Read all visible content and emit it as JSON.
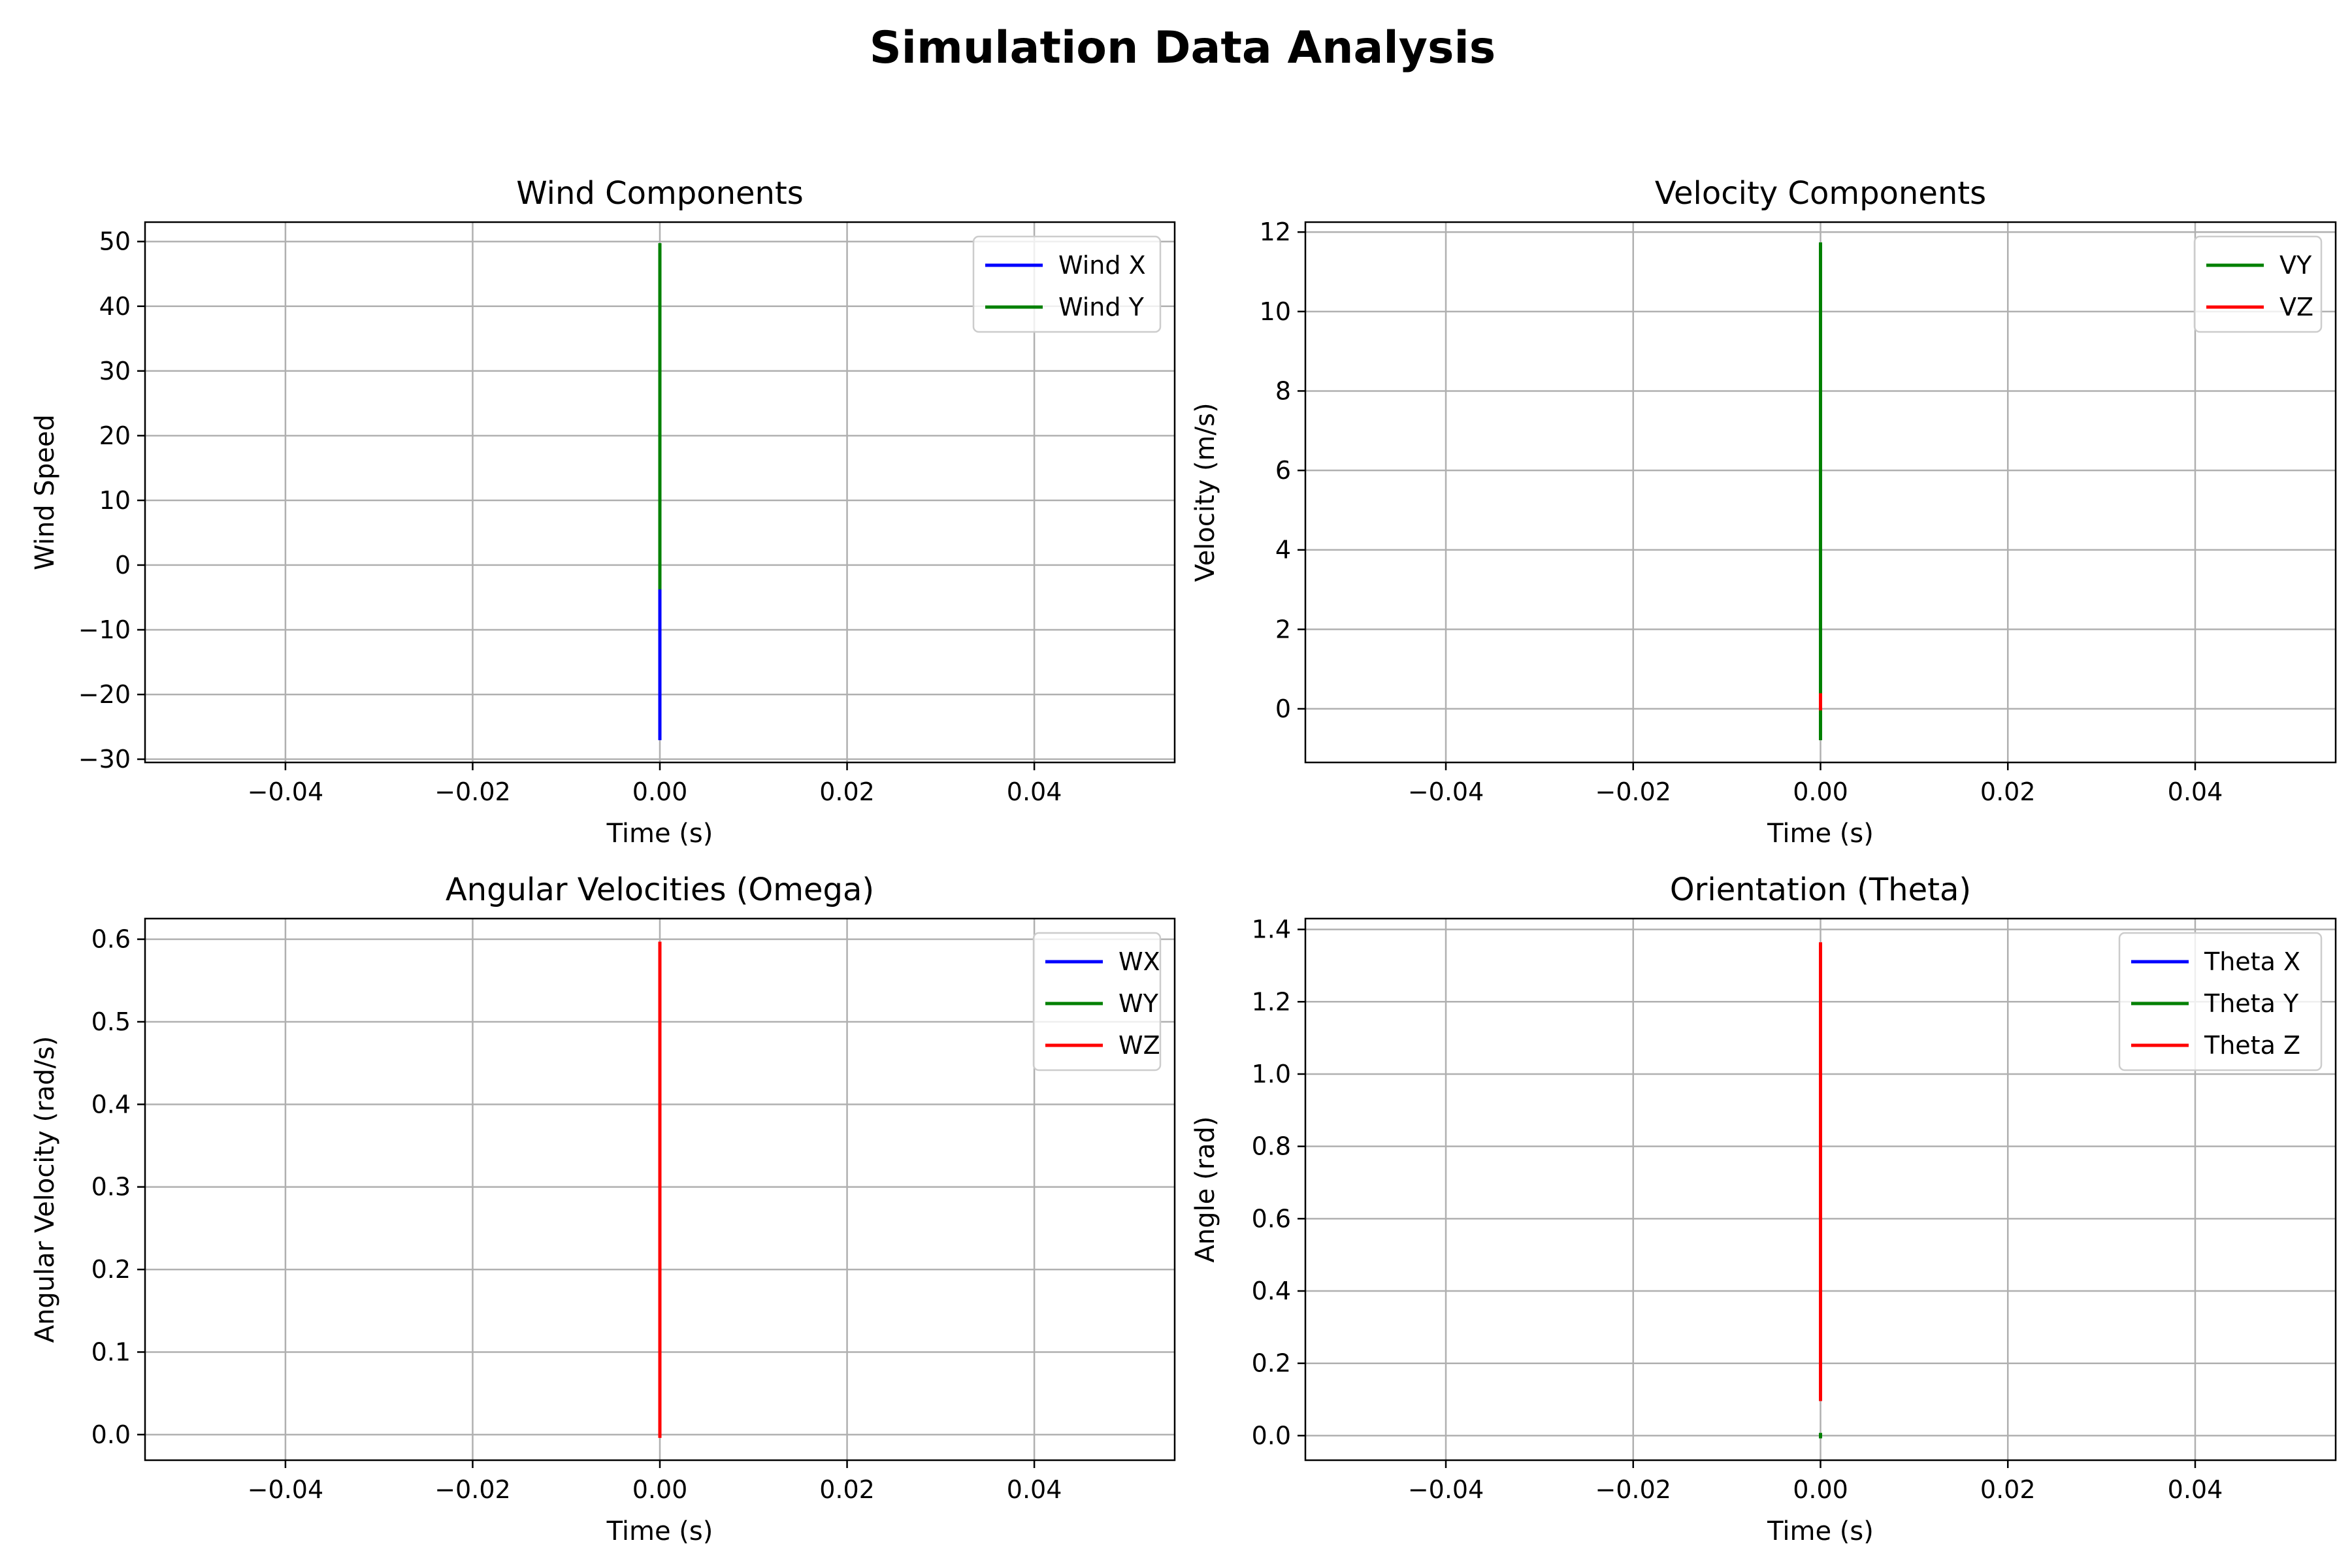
{
  "figure": {
    "title": "Simulation Data Analysis"
  },
  "chart_data": [
    {
      "type": "line",
      "title": "Wind Components",
      "xlabel": "Time (s)",
      "ylabel": "Wind Speed",
      "xlim": [
        -0.055,
        0.055
      ],
      "ylim": [
        -30.5,
        53
      ],
      "xticks": [
        -0.04,
        -0.02,
        0.0,
        0.02,
        0.04
      ],
      "xtick_labels": [
        "−0.04",
        "−0.02",
        "0.00",
        "0.02",
        "0.04"
      ],
      "yticks": [
        -30,
        -20,
        -10,
        0,
        10,
        20,
        30,
        40,
        50
      ],
      "ytick_labels": [
        "−30",
        "−20",
        "−10",
        "0",
        "10",
        "20",
        "30",
        "40",
        "50"
      ],
      "grid": true,
      "legend": "upper right",
      "series": [
        {
          "name": "Wind X",
          "color": "#0000ff",
          "x": [
            0,
            0
          ],
          "y": [
            -26.8,
            -3.5
          ]
        },
        {
          "name": "Wind Y",
          "color": "#008000",
          "x": [
            0,
            0
          ],
          "y": [
            -3.5,
            49.5
          ]
        }
      ]
    },
    {
      "type": "line",
      "title": "Velocity Components",
      "xlabel": "Time (s)",
      "ylabel": "Velocity (m/s)",
      "xlim": [
        -0.055,
        0.055
      ],
      "ylim": [
        -1.35,
        12.25
      ],
      "xticks": [
        -0.04,
        -0.02,
        0.0,
        0.02,
        0.04
      ],
      "xtick_labels": [
        "−0.04",
        "−0.02",
        "0.00",
        "0.02",
        "0.04"
      ],
      "yticks": [
        0,
        2,
        4,
        6,
        8,
        10,
        12
      ],
      "ytick_labels": [
        "0",
        "2",
        "4",
        "6",
        "8",
        "10",
        "12"
      ],
      "grid": true,
      "legend": "upper right",
      "series": [
        {
          "name": "VY",
          "color": "#008000",
          "x": [
            0,
            0
          ],
          "y": [
            -0.75,
            11.7
          ]
        },
        {
          "name": "VZ",
          "color": "#ff0000",
          "x": [
            0,
            0
          ],
          "y": [
            0.0,
            0.35
          ]
        }
      ]
    },
    {
      "type": "line",
      "title": "Angular Velocities (Omega)",
      "xlabel": "Time (s)",
      "ylabel": "Angular Velocity (rad/s)",
      "xlim": [
        -0.055,
        0.055
      ],
      "ylim": [
        -0.031,
        0.625
      ],
      "xticks": [
        -0.04,
        -0.02,
        0.0,
        0.02,
        0.04
      ],
      "xtick_labels": [
        "−0.04",
        "−0.02",
        "0.00",
        "0.02",
        "0.04"
      ],
      "yticks": [
        0.0,
        0.1,
        0.2,
        0.3,
        0.4,
        0.5,
        0.6
      ],
      "ytick_labels": [
        "0.0",
        "0.1",
        "0.2",
        "0.3",
        "0.4",
        "0.5",
        "0.6"
      ],
      "grid": true,
      "legend": "upper right",
      "series": [
        {
          "name": "WX",
          "color": "#0000ff",
          "x": [
            0,
            0
          ],
          "y": [
            0.0,
            0.0
          ]
        },
        {
          "name": "WY",
          "color": "#008000",
          "x": [
            0,
            0
          ],
          "y": [
            0.0,
            0.0
          ]
        },
        {
          "name": "WZ",
          "color": "#ff0000",
          "x": [
            0,
            0
          ],
          "y": [
            -0.002,
            0.595
          ]
        }
      ]
    },
    {
      "type": "line",
      "title": "Orientation (Theta)",
      "xlabel": "Time (s)",
      "ylabel": "Angle (rad)",
      "xlim": [
        -0.055,
        0.055
      ],
      "ylim": [
        -0.068,
        1.43
      ],
      "xticks": [
        -0.04,
        -0.02,
        0.0,
        0.02,
        0.04
      ],
      "xtick_labels": [
        "−0.04",
        "−0.02",
        "0.00",
        "0.02",
        "0.04"
      ],
      "yticks": [
        0.0,
        0.2,
        0.4,
        0.6,
        0.8,
        1.0,
        1.2,
        1.4
      ],
      "ytick_labels": [
        "0.0",
        "0.2",
        "0.4",
        "0.6",
        "0.8",
        "1.0",
        "1.2",
        "1.4"
      ],
      "grid": true,
      "legend": "upper right",
      "series": [
        {
          "name": "Theta X",
          "color": "#0000ff",
          "x": [
            0,
            0
          ],
          "y": [
            0.0,
            0.0
          ]
        },
        {
          "name": "Theta Y",
          "color": "#008000",
          "x": [
            0,
            0
          ],
          "y": [
            -0.003,
            0.003
          ]
        },
        {
          "name": "Theta Z",
          "color": "#ff0000",
          "x": [
            0,
            0
          ],
          "y": [
            0.1,
            1.36
          ]
        }
      ]
    }
  ]
}
